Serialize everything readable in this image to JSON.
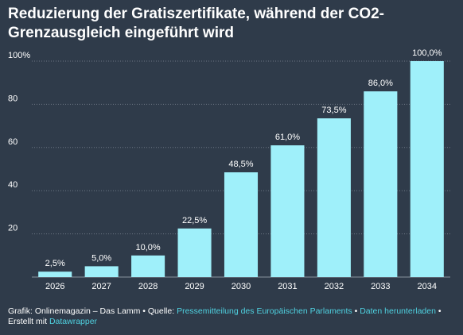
{
  "colors": {
    "background": "#2f3b4a",
    "bar": "#9ff0fa",
    "grid": "#6c7684",
    "text": "#ffffff",
    "link": "#4fd1e0"
  },
  "footer": {
    "prefix": "Grafik: Onlinemagazin – Das Lamm",
    "source_label": "Quelle:",
    "source_link": "Pressemitteilung des Europäischen Parlaments",
    "download_link": "Daten herunterladen",
    "created_with": "Erstellt mit",
    "tool_link": "Datawrapper",
    "bullet": "•"
  },
  "chart_data": {
    "type": "bar",
    "title": "Reduzierung der Gratiszertifikate, während der CO2-Grenzausgleich eingeführt wird",
    "xlabel": "",
    "ylabel": "",
    "categories": [
      "2026",
      "2027",
      "2028",
      "2029",
      "2030",
      "2031",
      "2032",
      "2033",
      "2034"
    ],
    "values": [
      2.5,
      5.0,
      10.0,
      22.5,
      48.5,
      61.0,
      73.5,
      86.0,
      100.0
    ],
    "value_labels": [
      "2,5%",
      "5,0%",
      "10,0%",
      "22,5%",
      "48,5%",
      "61,0%",
      "73,5%",
      "86,0%",
      "100,0%"
    ],
    "ylim": [
      0,
      100
    ],
    "yticks": [
      0,
      20,
      40,
      60,
      80,
      100
    ],
    "ytick_labels": [
      "",
      "20",
      "40",
      "60",
      "80",
      "100%"
    ],
    "grid": true,
    "legend": "none"
  }
}
